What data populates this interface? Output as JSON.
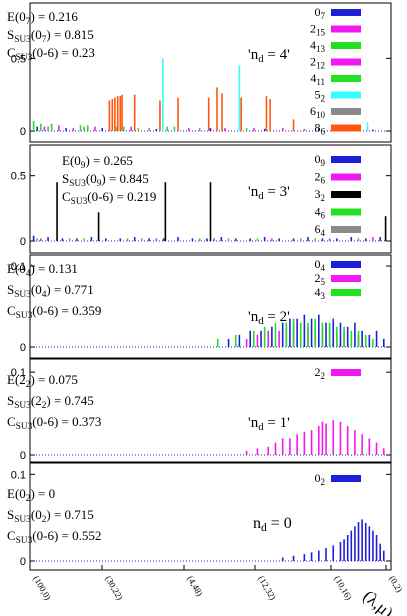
{
  "x_axis": {
    "tick_labels": [
      "(100,0)",
      "(30,22)",
      "(4,48)",
      "(12,32)",
      "(10,16)",
      "(0,2)"
    ],
    "label": "(λ,μ)"
  },
  "colors": {
    "blue": "#1f1fd8",
    "magenta": "#f01af0",
    "green": "#22e022",
    "black": "#000000",
    "cyan": "#33ffff",
    "gray": "#8a8a8a",
    "orange": "#ff5511"
  },
  "panels": [
    {
      "ylim": [
        0,
        0.75
      ],
      "yticks": [
        "0",
        "0.5"
      ],
      "tag": "'nd = 4'",
      "info": [
        "E(07) = 0.216",
        "SSU3(07) = 0.815",
        "CSU3(0-6) = 0.23"
      ],
      "legend": [
        "07",
        "215",
        "413",
        "212",
        "411",
        "52",
        "610",
        "86"
      ]
    },
    {
      "ylim": [
        0,
        0.62
      ],
      "yticks": [
        "0",
        "0.5"
      ],
      "tag": "'nd = 3'",
      "info": [
        "E(09) = 0.265",
        "SSU3(09) = 0.845",
        "CSU3(0-6) = 0.219"
      ],
      "legend": [
        "09",
        "26",
        "32",
        "46",
        "64"
      ]
    },
    {
      "ylim": [
        0,
        0.105
      ],
      "yticks": [
        "0",
        "0.1"
      ],
      "tag": "'nd = 2'",
      "info": [
        "E(04) = 0.131",
        "SSU3(04) = 0.771",
        "CSU3(0-6) = 0.359"
      ],
      "legend": [
        "04",
        "25",
        "43"
      ]
    },
    {
      "ylim": [
        0,
        0.105
      ],
      "yticks": [
        "0",
        "0.1"
      ],
      "tag": "'nd = 1'",
      "info": [
        "E(22) = 0.075",
        "SSU3(22) = 0.745",
        "CSU3(0-6) = 0.373"
      ],
      "legend": [
        "22"
      ]
    },
    {
      "ylim": [
        0,
        0.105
      ],
      "yticks": [
        "0",
        "0.1"
      ],
      "tag": "nd = 0",
      "info": [
        "E(02) = 0",
        "SSU3(02) = 0.715",
        "CSU3(0-6) = 0.552"
      ],
      "legend": [
        "02"
      ]
    }
  ],
  "chart_data": [
    {
      "type": "bar",
      "x_domain": [
        0,
        100
      ],
      "ylim": [
        0,
        0.75
      ],
      "series": [
        {
          "name": "07",
          "color": "blue",
          "x": [
            2,
            10,
            20,
            35,
            50,
            65,
            80,
            95
          ],
          "values": [
            0.03,
            0.02,
            0.02,
            0.015,
            0.02,
            0.015,
            0.02,
            0.01
          ]
        },
        {
          "name": "215",
          "color": "magenta",
          "x": [
            4,
            12,
            22,
            44,
            62,
            86
          ],
          "values": [
            0.03,
            0.02,
            0.02,
            0.02,
            0.02,
            0.015
          ]
        },
        {
          "name": "413",
          "color": "green",
          "x": [
            1,
            6,
            14,
            24,
            30,
            40
          ],
          "values": [
            0.07,
            0.05,
            0.04,
            0.03,
            0.02,
            0.03
          ]
        },
        {
          "name": "212",
          "color": "magenta",
          "x": [
            8,
            18,
            28,
            54,
            70
          ],
          "values": [
            0.04,
            0.03,
            0.03,
            0.02,
            0.02
          ]
        },
        {
          "name": "411",
          "color": "green",
          "x": [
            3,
            16,
            26,
            38,
            60
          ],
          "values": [
            0.05,
            0.04,
            0.03,
            0.03,
            0.02
          ]
        },
        {
          "name": "52",
          "color": "cyan",
          "x": [
            36.8,
            58.0,
            93.5
          ],
          "values": [
            0.5,
            0.45,
            0.06
          ]
        },
        {
          "name": "610",
          "color": "gray",
          "x": [
            5,
            15,
            33,
            47,
            76
          ],
          "values": [
            0.03,
            0.03,
            0.02,
            0.02,
            0.015
          ]
        },
        {
          "name": "86",
          "color": "orange",
          "x": [
            22.0,
            22.8,
            23.5,
            24.3,
            25.0,
            25.5,
            29.0,
            36.0,
            41.0,
            49.5,
            51.8,
            53.2,
            58.5,
            65.5,
            66.5,
            73.0
          ],
          "values": [
            0.21,
            0.22,
            0.23,
            0.24,
            0.24,
            0.25,
            0.25,
            0.21,
            0.23,
            0.23,
            0.3,
            0.26,
            0.23,
            0.24,
            0.22,
            0.08
          ]
        }
      ]
    },
    {
      "type": "bar",
      "x_domain": [
        0,
        100
      ],
      "ylim": [
        0,
        0.62
      ],
      "series": [
        {
          "name": "09",
          "color": "blue",
          "x": [
            1,
            5,
            9,
            13,
            17,
            21,
            25,
            29,
            33,
            37,
            41,
            45,
            49,
            53,
            57,
            61,
            65,
            69,
            73,
            77,
            81,
            85,
            89,
            93,
            97
          ],
          "values": [
            0.04,
            0.03,
            0.02,
            0.02,
            0.03,
            0.02,
            0.02,
            0.03,
            0.02,
            0.02,
            0.03,
            0.02,
            0.02,
            0.03,
            0.02,
            0.02,
            0.03,
            0.02,
            0.02,
            0.03,
            0.02,
            0.02,
            0.03,
            0.02,
            0.03
          ]
        },
        {
          "name": "26",
          "color": "magenta",
          "x": [
            3,
            19,
            35,
            51,
            67,
            83,
            95
          ],
          "values": [
            0.02,
            0.02,
            0.02,
            0.02,
            0.02,
            0.02,
            0.03
          ]
        },
        {
          "name": "32",
          "color": "black",
          "x": [
            7.5,
            19.0,
            37.5,
            50.0,
            98.5
          ],
          "values": [
            0.45,
            0.22,
            0.45,
            0.45,
            0.19
          ]
        },
        {
          "name": "46",
          "color": "green",
          "x": [
            2,
            15,
            27,
            47,
            63,
            79
          ],
          "values": [
            0.02,
            0.02,
            0.02,
            0.02,
            0.02,
            0.02
          ]
        },
        {
          "name": "64",
          "color": "gray",
          "x": [
            11,
            31,
            55,
            75,
            91
          ],
          "values": [
            0.02,
            0.02,
            0.02,
            0.02,
            0.02
          ]
        }
      ]
    },
    {
      "type": "bar",
      "x_domain": [
        0,
        100
      ],
      "ylim": [
        0,
        0.105
      ],
      "series": [
        {
          "name": "04",
          "color": "blue",
          "x": [
            55,
            58,
            61,
            64,
            67,
            70,
            72,
            74,
            76,
            78,
            80,
            82,
            84,
            86,
            88,
            90,
            92,
            94,
            96,
            98
          ],
          "values": [
            0.01,
            0.015,
            0.02,
            0.02,
            0.025,
            0.03,
            0.035,
            0.035,
            0.04,
            0.035,
            0.04,
            0.03,
            0.035,
            0.03,
            0.025,
            0.03,
            0.02,
            0.015,
            0.02,
            0.01
          ]
        },
        {
          "name": "25",
          "color": "magenta",
          "x": [
            60,
            63,
            66,
            69,
            71,
            73,
            75,
            77,
            79,
            81,
            83,
            85,
            87,
            89,
            91,
            93
          ],
          "values": [
            0.01,
            0.015,
            0.02,
            0.02,
            0.025,
            0.03,
            0.03,
            0.025,
            0.03,
            0.025,
            0.025,
            0.02,
            0.02,
            0.015,
            0.015,
            0.01
          ]
        },
        {
          "name": "43",
          "color": "green",
          "x": [
            52,
            57,
            62,
            65,
            68,
            71,
            73,
            75,
            77,
            79,
            81,
            83,
            85,
            87,
            89,
            91,
            93,
            95
          ],
          "values": [
            0.01,
            0.015,
            0.02,
            0.025,
            0.03,
            0.03,
            0.035,
            0.03,
            0.03,
            0.035,
            0.03,
            0.03,
            0.025,
            0.025,
            0.02,
            0.02,
            0.015,
            0.01
          ]
        }
      ]
    },
    {
      "type": "bar",
      "x_domain": [
        0,
        100
      ],
      "ylim": [
        0,
        0.105
      ],
      "series": [
        {
          "name": "22",
          "color": "magenta",
          "x": [
            60,
            63,
            66,
            68,
            70,
            72,
            74,
            76,
            78,
            80,
            81,
            82,
            84,
            86,
            88,
            90,
            92,
            94,
            96,
            98
          ],
          "values": [
            0.005,
            0.008,
            0.01,
            0.015,
            0.02,
            0.02,
            0.025,
            0.028,
            0.03,
            0.035,
            0.04,
            0.038,
            0.042,
            0.04,
            0.035,
            0.03,
            0.025,
            0.02,
            0.015,
            0.008
          ]
        }
      ]
    },
    {
      "type": "bar",
      "x_domain": [
        0,
        100
      ],
      "ylim": [
        0,
        0.105
      ],
      "series": [
        {
          "name": "02",
          "color": "blue",
          "x": [
            70,
            73,
            76,
            78,
            80,
            82,
            84,
            86,
            87,
            88,
            89,
            90,
            91,
            92,
            93,
            94,
            95,
            96,
            97,
            98
          ],
          "values": [
            0.004,
            0.006,
            0.008,
            0.01,
            0.012,
            0.015,
            0.018,
            0.022,
            0.025,
            0.03,
            0.035,
            0.04,
            0.045,
            0.048,
            0.044,
            0.04,
            0.035,
            0.03,
            0.02,
            0.012
          ]
        }
      ]
    }
  ]
}
